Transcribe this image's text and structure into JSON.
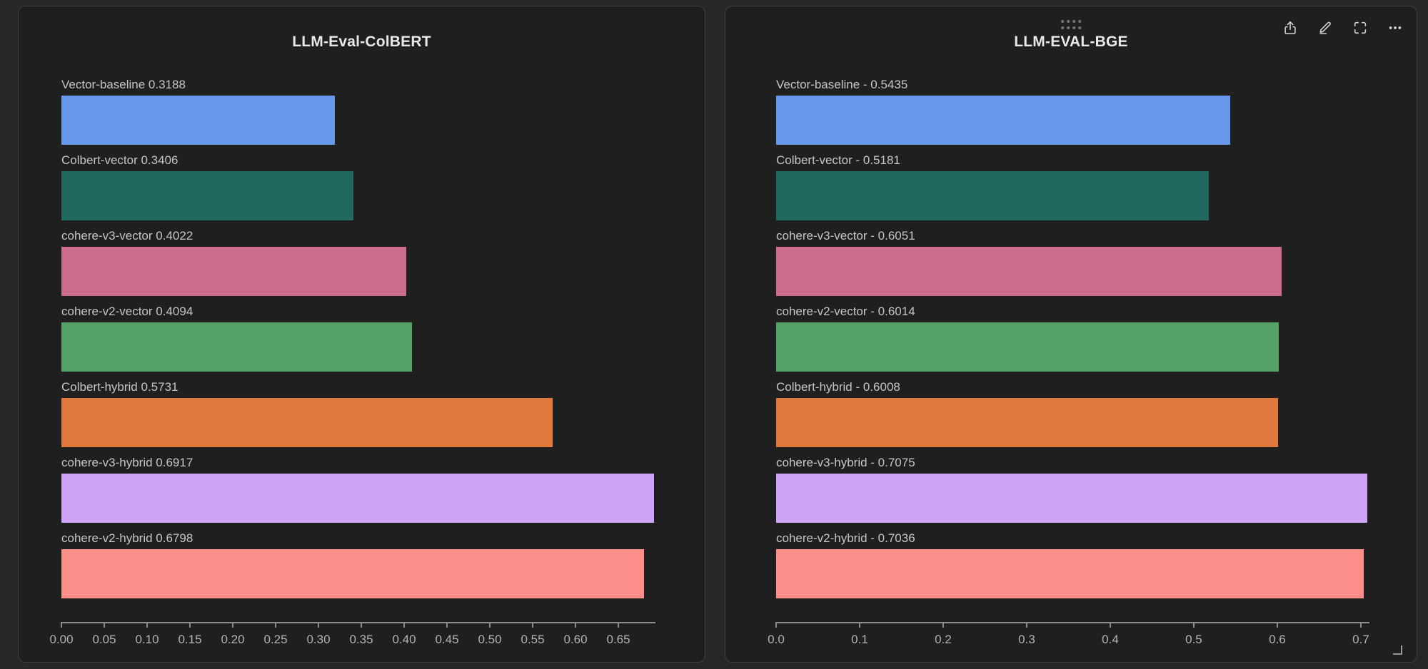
{
  "page": {
    "background": "#272727",
    "panel_background": "#1f1f1f",
    "panel_border": "#3f3f3f",
    "axis_color": "#8c8c8c",
    "label_color": "#c6c6c6",
    "title_color": "#e9e9e9"
  },
  "toolbar": {
    "icons": [
      "share-export",
      "edit-pencil",
      "fullscreen",
      "more-options-ellipsis"
    ],
    "drag_handle": "dots-grid-2x4",
    "resize_handle": "corner-bracket"
  },
  "chart_data": [
    {
      "type": "bar",
      "orientation": "horizontal",
      "title": "LLM-Eval-ColBERT",
      "categories": [
        "Vector-baseline",
        "Colbert-vector",
        "cohere-v3-vector",
        "cohere-v2-vector",
        "Colbert-hybrid",
        "cohere-v3-hybrid",
        "cohere-v2-hybrid"
      ],
      "values": [
        0.3188,
        0.3406,
        0.4022,
        0.4094,
        0.5731,
        0.6917,
        0.6798
      ],
      "labels": [
        "Vector-baseline 0.3188",
        "Colbert-vector 0.3406",
        "cohere-v3-vector 0.4022",
        "cohere-v2-vector 0.4094",
        "Colbert-hybrid 0.5731",
        "cohere-v3-hybrid 0.6917",
        "cohere-v2-hybrid 0.6798"
      ],
      "bar_colors": [
        "#6699ea",
        "#20695f",
        "#cb6c8c",
        "#55a167",
        "#e1793e",
        "#cda3f5",
        "#fb8e88"
      ],
      "xlabel": "",
      "ylabel": "",
      "xlim": [
        0,
        0.6933
      ],
      "xtick_values": [
        0,
        0.05,
        0.1,
        0.15,
        0.2,
        0.25,
        0.3,
        0.35,
        0.4,
        0.45,
        0.5,
        0.55,
        0.6,
        0.65
      ],
      "xtick_labels": [
        "0.00",
        "0.05",
        "0.10",
        "0.15",
        "0.20",
        "0.25",
        "0.30",
        "0.35",
        "0.40",
        "0.45",
        "0.50",
        "0.55",
        "0.60",
        "0.65"
      ],
      "grid": false,
      "legend": false
    },
    {
      "type": "bar",
      "orientation": "horizontal",
      "title": "LLM-EVAL-BGE",
      "categories": [
        "Vector-baseline",
        "Colbert-vector",
        "cohere-v3-vector",
        "cohere-v2-vector",
        "Colbert-hybrid",
        "cohere-v3-hybrid",
        "cohere-v2-hybrid"
      ],
      "values": [
        0.5435,
        0.5181,
        0.6051,
        0.6014,
        0.6008,
        0.7075,
        0.7036
      ],
      "labels": [
        "Vector-baseline - 0.5435",
        "Colbert-vector - 0.5181",
        "cohere-v3-vector - 0.6051",
        "cohere-v2-vector - 0.6014",
        "Colbert-hybrid - 0.6008",
        "cohere-v3-hybrid - 0.7075",
        "cohere-v2-hybrid - 0.7036"
      ],
      "bar_colors": [
        "#6699ea",
        "#20695f",
        "#cb6c8c",
        "#55a167",
        "#e1793e",
        "#cda3f5",
        "#fb8e88"
      ],
      "xlabel": "",
      "ylabel": "",
      "xlim": [
        0,
        0.7103
      ],
      "xtick_values": [
        0,
        0.1,
        0.2,
        0.3,
        0.4,
        0.5,
        0.6,
        0.7
      ],
      "xtick_labels": [
        "0.0",
        "0.1",
        "0.2",
        "0.3",
        "0.4",
        "0.5",
        "0.6",
        "0.7"
      ],
      "grid": false,
      "legend": false
    }
  ]
}
